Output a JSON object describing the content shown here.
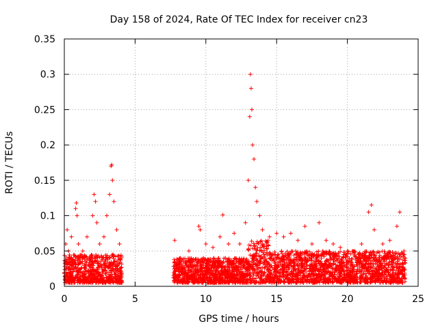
{
  "chart_data": {
    "type": "scatter",
    "title": "Day 158 of 2024, Rate Of TEC Index for receiver cn23",
    "xlabel": "GPS time / hours",
    "ylabel": "ROTI / TECUs",
    "xlim": [
      0,
      25
    ],
    "ylim": [
      0,
      0.35
    ],
    "x_ticks": [
      0,
      5,
      10,
      15,
      20,
      25
    ],
    "x_tick_labels": [
      "0",
      "5",
      "10",
      "15",
      "20",
      "25"
    ],
    "y_ticks": [
      0,
      0.05,
      0.1,
      0.15,
      0.2,
      0.25,
      0.3,
      0.35
    ],
    "y_tick_labels": [
      "0",
      "0.05",
      "0.1",
      "0.15",
      "0.2",
      "0.25",
      "0.3",
      "0.35"
    ],
    "grid": true,
    "marker": "plus",
    "color": "#ff0000",
    "series": [
      {
        "name": "ROTI",
        "points": [
          [
            0.1,
            0.06
          ],
          [
            0.2,
            0.08
          ],
          [
            0.3,
            0.05
          ],
          [
            0.5,
            0.07
          ],
          [
            0.8,
            0.11
          ],
          [
            0.85,
            0.118
          ],
          [
            0.9,
            0.1
          ],
          [
            1.0,
            0.06
          ],
          [
            1.3,
            0.05
          ],
          [
            1.6,
            0.07
          ],
          [
            2.0,
            0.1
          ],
          [
            2.1,
            0.13
          ],
          [
            2.2,
            0.12
          ],
          [
            2.3,
            0.09
          ],
          [
            2.5,
            0.06
          ],
          [
            2.8,
            0.07
          ],
          [
            3.0,
            0.1
          ],
          [
            3.2,
            0.13
          ],
          [
            3.3,
            0.17
          ],
          [
            3.35,
            0.172
          ],
          [
            3.4,
            0.15
          ],
          [
            3.5,
            0.12
          ],
          [
            3.7,
            0.08
          ],
          [
            3.9,
            0.06
          ],
          [
            7.8,
            0.065
          ],
          [
            8.2,
            0.04
          ],
          [
            8.8,
            0.05
          ],
          [
            9.5,
            0.085
          ],
          [
            9.6,
            0.08
          ],
          [
            10.0,
            0.06
          ],
          [
            10.5,
            0.055
          ],
          [
            11.0,
            0.07
          ],
          [
            11.2,
            0.101
          ],
          [
            11.6,
            0.06
          ],
          [
            12.0,
            0.075
          ],
          [
            12.4,
            0.06
          ],
          [
            12.8,
            0.09
          ],
          [
            13.0,
            0.15
          ],
          [
            13.1,
            0.24
          ],
          [
            13.15,
            0.3
          ],
          [
            13.2,
            0.28
          ],
          [
            13.25,
            0.25
          ],
          [
            13.3,
            0.2
          ],
          [
            13.4,
            0.18
          ],
          [
            13.5,
            0.14
          ],
          [
            13.6,
            0.12
          ],
          [
            13.8,
            0.1
          ],
          [
            14.0,
            0.08
          ],
          [
            14.5,
            0.07
          ],
          [
            15.0,
            0.075
          ],
          [
            15.5,
            0.07
          ],
          [
            16.0,
            0.075
          ],
          [
            16.5,
            0.065
          ],
          [
            17.0,
            0.085
          ],
          [
            17.5,
            0.06
          ],
          [
            18.0,
            0.09
          ],
          [
            18.5,
            0.065
          ],
          [
            19.0,
            0.06
          ],
          [
            19.5,
            0.055
          ],
          [
            20.0,
            0.05
          ],
          [
            20.5,
            0.05
          ],
          [
            21.0,
            0.06
          ],
          [
            21.5,
            0.105
          ],
          [
            21.7,
            0.115
          ],
          [
            21.9,
            0.08
          ],
          [
            22.5,
            0.06
          ],
          [
            23.0,
            0.065
          ],
          [
            23.5,
            0.085
          ],
          [
            23.7,
            0.105
          ],
          [
            24.0,
            0.05
          ]
        ]
      }
    ]
  }
}
